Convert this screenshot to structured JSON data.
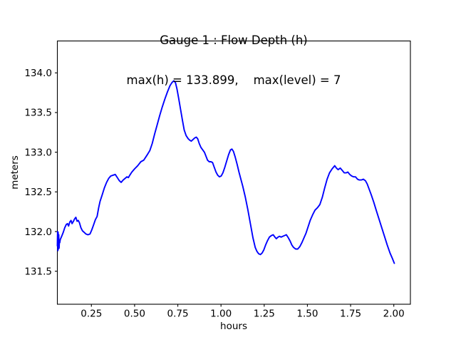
{
  "chart_data": {
    "type": "line",
    "title": "Gauge 1 : Flow Depth (h)",
    "subtitle": "max(h) = 133.899,    max(level) = 7",
    "xlabel": "hours",
    "ylabel": "meters",
    "max_h": 133.899,
    "max_level": 7,
    "grid": false,
    "legend": "none",
    "xlim": [
      0.053,
      2.096
    ],
    "ylim": [
      131.084,
      134.402
    ],
    "x_ticks": [
      {
        "v": 0.25,
        "label": "0.25"
      },
      {
        "v": 0.5,
        "label": "0.50"
      },
      {
        "v": 0.75,
        "label": "0.75"
      },
      {
        "v": 1.0,
        "label": "1.00"
      },
      {
        "v": 1.25,
        "label": "1.25"
      },
      {
        "v": 1.5,
        "label": "1.50"
      },
      {
        "v": 1.75,
        "label": "1.75"
      },
      {
        "v": 2.0,
        "label": "2.00"
      }
    ],
    "y_ticks": [
      {
        "v": 131.5,
        "label": "131.5"
      },
      {
        "v": 132.0,
        "label": "132.0"
      },
      {
        "v": 132.5,
        "label": "132.5"
      },
      {
        "v": 133.0,
        "label": "133.0"
      },
      {
        "v": 133.5,
        "label": "133.5"
      },
      {
        "v": 134.0,
        "label": "134.0"
      }
    ],
    "series": [
      {
        "name": "Flow Depth (h)",
        "color": "#0000ff",
        "points": [
          [
            0.053,
            131.82
          ],
          [
            0.0545,
            132.0
          ],
          [
            0.056,
            131.76
          ],
          [
            0.0575,
            131.99
          ],
          [
            0.059,
            131.78
          ],
          [
            0.061,
            131.96
          ],
          [
            0.063,
            131.79
          ],
          [
            0.065,
            131.88
          ],
          [
            0.067,
            131.86
          ],
          [
            0.07,
            131.9
          ],
          [
            0.078,
            131.94
          ],
          [
            0.087,
            131.99
          ],
          [
            0.096,
            132.05
          ],
          [
            0.105,
            132.09
          ],
          [
            0.112,
            132.1
          ],
          [
            0.118,
            132.07
          ],
          [
            0.125,
            132.12
          ],
          [
            0.132,
            132.14
          ],
          [
            0.138,
            132.1
          ],
          [
            0.146,
            132.13
          ],
          [
            0.153,
            132.16
          ],
          [
            0.16,
            132.18
          ],
          [
            0.167,
            132.13
          ],
          [
            0.174,
            132.14
          ],
          [
            0.181,
            132.11
          ],
          [
            0.189,
            132.05
          ],
          [
            0.198,
            132.01
          ],
          [
            0.208,
            131.99
          ],
          [
            0.218,
            131.97
          ],
          [
            0.23,
            131.96
          ],
          [
            0.242,
            131.97
          ],
          [
            0.252,
            132.02
          ],
          [
            0.262,
            132.08
          ],
          [
            0.273,
            132.15
          ],
          [
            0.283,
            132.19
          ],
          [
            0.292,
            132.3
          ],
          [
            0.3,
            132.38
          ],
          [
            0.312,
            132.46
          ],
          [
            0.325,
            132.55
          ],
          [
            0.338,
            132.62
          ],
          [
            0.35,
            132.67
          ],
          [
            0.362,
            132.7
          ],
          [
            0.375,
            132.71
          ],
          [
            0.388,
            132.72
          ],
          [
            0.4,
            132.68
          ],
          [
            0.412,
            132.64
          ],
          [
            0.422,
            132.62
          ],
          [
            0.434,
            132.65
          ],
          [
            0.445,
            132.67
          ],
          [
            0.456,
            132.69
          ],
          [
            0.464,
            132.68
          ],
          [
            0.472,
            132.71
          ],
          [
            0.484,
            132.75
          ],
          [
            0.5,
            132.79
          ],
          [
            0.518,
            132.83
          ],
          [
            0.536,
            132.88
          ],
          [
            0.553,
            132.9
          ],
          [
            0.571,
            132.96
          ],
          [
            0.588,
            133.02
          ],
          [
            0.602,
            133.11
          ],
          [
            0.616,
            133.23
          ],
          [
            0.63,
            133.34
          ],
          [
            0.645,
            133.46
          ],
          [
            0.66,
            133.57
          ],
          [
            0.675,
            133.67
          ],
          [
            0.69,
            133.76
          ],
          [
            0.705,
            133.84
          ],
          [
            0.717,
            133.88
          ],
          [
            0.727,
            133.899
          ],
          [
            0.736,
            133.88
          ],
          [
            0.745,
            133.8
          ],
          [
            0.755,
            133.68
          ],
          [
            0.766,
            133.54
          ],
          [
            0.777,
            133.4
          ],
          [
            0.787,
            133.28
          ],
          [
            0.798,
            133.21
          ],
          [
            0.81,
            133.17
          ],
          [
            0.82,
            133.15
          ],
          [
            0.828,
            133.14
          ],
          [
            0.838,
            133.16
          ],
          [
            0.848,
            133.18
          ],
          [
            0.857,
            133.19
          ],
          [
            0.865,
            133.17
          ],
          [
            0.874,
            133.11
          ],
          [
            0.884,
            133.06
          ],
          [
            0.894,
            133.03
          ],
          [
            0.904,
            133.0
          ],
          [
            0.913,
            132.95
          ],
          [
            0.922,
            132.9
          ],
          [
            0.932,
            132.88
          ],
          [
            0.942,
            132.88
          ],
          [
            0.951,
            132.87
          ],
          [
            0.961,
            132.81
          ],
          [
            0.971,
            132.75
          ],
          [
            0.981,
            132.71
          ],
          [
            0.991,
            132.69
          ],
          [
            1.001,
            132.7
          ],
          [
            1.011,
            132.74
          ],
          [
            1.022,
            132.81
          ],
          [
            1.033,
            132.89
          ],
          [
            1.044,
            132.97
          ],
          [
            1.055,
            133.03
          ],
          [
            1.063,
            133.04
          ],
          [
            1.072,
            133.01
          ],
          [
            1.082,
            132.94
          ],
          [
            1.093,
            132.85
          ],
          [
            1.104,
            132.75
          ],
          [
            1.115,
            132.66
          ],
          [
            1.126,
            132.57
          ],
          [
            1.14,
            132.44
          ],
          [
            1.155,
            132.28
          ],
          [
            1.17,
            132.1
          ],
          [
            1.185,
            131.92
          ],
          [
            1.198,
            131.8
          ],
          [
            1.208,
            131.75
          ],
          [
            1.218,
            131.72
          ],
          [
            1.228,
            131.71
          ],
          [
            1.238,
            131.73
          ],
          [
            1.248,
            131.77
          ],
          [
            1.258,
            131.83
          ],
          [
            1.268,
            131.88
          ],
          [
            1.28,
            131.93
          ],
          [
            1.292,
            131.95
          ],
          [
            1.302,
            131.96
          ],
          [
            1.312,
            131.93
          ],
          [
            1.32,
            131.91
          ],
          [
            1.33,
            131.93
          ],
          [
            1.338,
            131.94
          ],
          [
            1.348,
            131.93
          ],
          [
            1.358,
            131.94
          ],
          [
            1.368,
            131.95
          ],
          [
            1.378,
            131.96
          ],
          [
            1.39,
            131.92
          ],
          [
            1.4,
            131.88
          ],
          [
            1.41,
            131.83
          ],
          [
            1.42,
            131.8
          ],
          [
            1.432,
            131.78
          ],
          [
            1.444,
            131.78
          ],
          [
            1.456,
            131.81
          ],
          [
            1.468,
            131.86
          ],
          [
            1.48,
            131.92
          ],
          [
            1.492,
            131.98
          ],
          [
            1.504,
            132.06
          ],
          [
            1.516,
            132.14
          ],
          [
            1.53,
            132.21
          ],
          [
            1.544,
            132.27
          ],
          [
            1.558,
            132.3
          ],
          [
            1.572,
            132.34
          ],
          [
            1.586,
            132.43
          ],
          [
            1.6,
            132.55
          ],
          [
            1.614,
            132.66
          ],
          [
            1.628,
            132.74
          ],
          [
            1.643,
            132.79
          ],
          [
            1.658,
            132.83
          ],
          [
            1.668,
            132.8
          ],
          [
            1.678,
            132.78
          ],
          [
            1.69,
            132.8
          ],
          [
            1.702,
            132.77
          ],
          [
            1.713,
            132.74
          ],
          [
            1.724,
            132.74
          ],
          [
            1.734,
            132.75
          ],
          [
            1.745,
            132.72
          ],
          [
            1.756,
            132.7
          ],
          [
            1.767,
            132.69
          ],
          [
            1.778,
            132.69
          ],
          [
            1.79,
            132.66
          ],
          [
            1.8,
            132.65
          ],
          [
            1.812,
            132.65
          ],
          [
            1.824,
            132.66
          ],
          [
            1.836,
            132.64
          ],
          [
            1.846,
            132.6
          ],
          [
            1.858,
            132.53
          ],
          [
            1.87,
            132.46
          ],
          [
            1.884,
            132.37
          ],
          [
            1.898,
            132.27
          ],
          [
            1.914,
            132.16
          ],
          [
            1.93,
            132.05
          ],
          [
            1.946,
            131.94
          ],
          [
            1.962,
            131.83
          ],
          [
            1.978,
            131.73
          ],
          [
            1.992,
            131.66
          ],
          [
            2.003,
            131.6
          ]
        ]
      }
    ]
  }
}
